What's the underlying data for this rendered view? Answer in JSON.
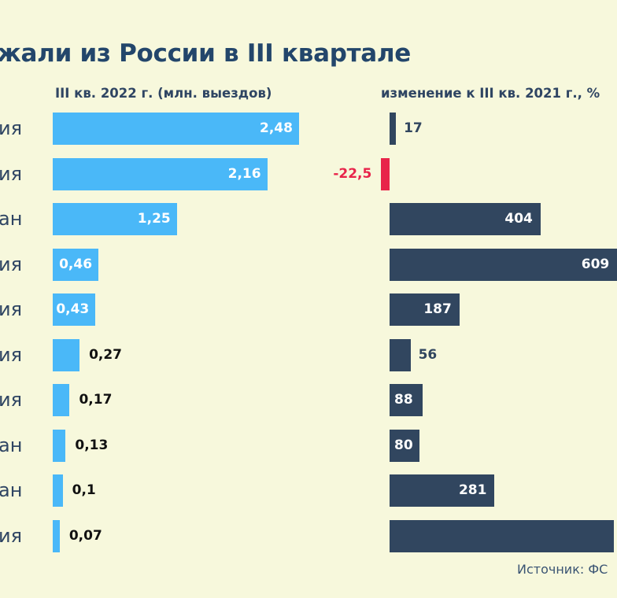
{
  "chart_data": {
    "type": "bar",
    "title": "…жали из России в III квартале",
    "categories": [
      "…ия",
      "…ия",
      "…ан",
      "…ия",
      "…ия",
      "…ия",
      "…ия",
      "…ан",
      "…ан",
      "…ия"
    ],
    "series": [
      {
        "name": "III кв. 2022 г. (млн. выездов)",
        "values": [
          2.48,
          2.16,
          1.25,
          0.46,
          0.43,
          0.27,
          0.17,
          0.13,
          0.1,
          0.07
        ],
        "labels": [
          "2,48",
          "2,16",
          "1,25",
          "0,46",
          "0,43",
          "0,27",
          "0,17",
          "0,13",
          "0,1",
          "0,07"
        ],
        "color": "#4ab8f8"
      },
      {
        "name": "изменение к III кв. 2021 г., %",
        "values": [
          17,
          -22.5,
          404,
          609,
          187,
          56,
          88,
          80,
          281,
          null
        ],
        "labels": [
          "17",
          "-22,5",
          "404",
          "609",
          "187",
          "56",
          "88",
          "80",
          "281",
          ""
        ],
        "color": "#31465f",
        "negative_color": "#e8244a"
      }
    ],
    "xlabel": "",
    "ylabel": "",
    "orientation": "horizontal",
    "source": "Источник: ФС…"
  },
  "title": "жали из России в III квартале",
  "subheads": {
    "left": "III кв. 2022 г. (млн. выездов)",
    "right": "изменение к III кв. 2021 г., %"
  },
  "source": "Источник: ФС"
}
